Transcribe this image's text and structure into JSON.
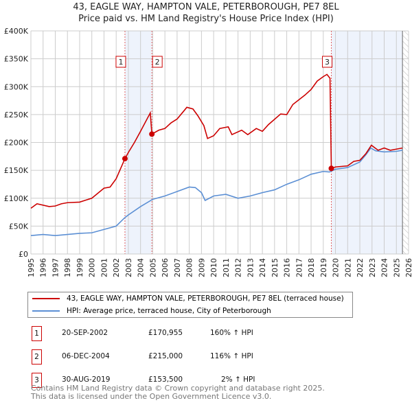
{
  "title": "43, EAGLE WAY, HAMPTON VALE, PETERBOROUGH, PE7 8EL",
  "subtitle": "Price paid vs. HM Land Registry's House Price Index (HPI)",
  "chart_data": {
    "type": "line",
    "ylim": [
      0,
      400000
    ],
    "xlim": [
      1995,
      2026
    ],
    "yticks": [
      {
        "v": 0,
        "label": "£0"
      },
      {
        "v": 50000,
        "label": "£50K"
      },
      {
        "v": 100000,
        "label": "£100K"
      },
      {
        "v": 150000,
        "label": "£150K"
      },
      {
        "v": 200000,
        "label": "£200K"
      },
      {
        "v": 250000,
        "label": "£250K"
      },
      {
        "v": 300000,
        "label": "£300K"
      },
      {
        "v": 350000,
        "label": "£350K"
      },
      {
        "v": 400000,
        "label": "£400K"
      }
    ],
    "xticks": [
      "1995",
      "1996",
      "1997",
      "1998",
      "1999",
      "2000",
      "2001",
      "2002",
      "2003",
      "2004",
      "2005",
      "2006",
      "2007",
      "2008",
      "2009",
      "2010",
      "2011",
      "2012",
      "2013",
      "2014",
      "2015",
      "2016",
      "2017",
      "2018",
      "2019",
      "2020",
      "2021",
      "2022",
      "2023",
      "2024",
      "2025",
      "2026"
    ],
    "grid": true,
    "series": [
      {
        "name": "43, EAGLE WAY, HAMPTON VALE, PETERBOROUGH, PE7 8EL (terraced house)",
        "color": "#cc0000",
        "x": [
          1995,
          1995.5,
          1996.5,
          1997,
          1997.5,
          1998,
          1999,
          2000,
          2001,
          2001.5,
          2002,
          2002.72,
          2003,
          2003.5,
          2004,
          2004.8,
          2004.93,
          2005.5,
          2006,
          2006.5,
          2007,
          2007.5,
          2007.8,
          2008.3,
          2008.7,
          2009.2,
          2009.5,
          2010,
          2010.5,
          2011.2,
          2011.5,
          2012.3,
          2012.8,
          2013.5,
          2014,
          2014.5,
          2015.5,
          2016,
          2016.5,
          2017.5,
          2018,
          2018.5,
          2019,
          2019.3,
          2019.55,
          2019.66,
          2020,
          2021,
          2021.5,
          2022,
          2022.5,
          2022.95,
          2023.5,
          2024,
          2024.5,
          2025,
          2025.5
        ],
        "y": [
          82000,
          90000,
          85000,
          86000,
          90000,
          92000,
          93000,
          100000,
          118000,
          120000,
          135000,
          170955,
          182000,
          200000,
          220000,
          253000,
          215000,
          222000,
          225000,
          235000,
          242000,
          255000,
          263000,
          260000,
          248000,
          230000,
          207000,
          212000,
          225000,
          228000,
          214000,
          222000,
          214000,
          225000,
          220000,
          232000,
          251000,
          250000,
          268000,
          285000,
          295000,
          310000,
          318000,
          322000,
          315000,
          153500,
          156000,
          158000,
          166000,
          168000,
          180000,
          195000,
          186000,
          190000,
          186000,
          188000,
          190000
        ]
      },
      {
        "name": "HPI: Average price, terraced house, City of Peterborough",
        "color": "#5b8fd4",
        "x": [
          1995,
          1996,
          1997,
          1998,
          1999,
          2000,
          2001,
          2002,
          2002.7,
          2003,
          2004,
          2005,
          2006,
          2007,
          2008,
          2008.5,
          2009,
          2009.3,
          2010,
          2011,
          2012,
          2013,
          2014,
          2015,
          2016,
          2017,
          2018,
          2019,
          2019.5,
          2020,
          2021,
          2022,
          2022.5,
          2022.9,
          2023.3,
          2024,
          2025,
          2025.5
        ],
        "y": [
          33000,
          35000,
          33000,
          35000,
          37000,
          38000,
          44000,
          50000,
          65000,
          70000,
          85000,
          98000,
          104000,
          112000,
          120000,
          119000,
          110000,
          96000,
          104000,
          107000,
          100000,
          104000,
          110000,
          115000,
          125000,
          133000,
          143000,
          148000,
          147000,
          152000,
          155000,
          165000,
          178000,
          190000,
          185000,
          183000,
          184000,
          186000
        ]
      }
    ],
    "sales": [
      {
        "id": "1",
        "x": 2002.72,
        "y": 170955
      },
      {
        "id": "2",
        "x": 2004.93,
        "y": 215000
      },
      {
        "id": "3",
        "x": 2019.66,
        "y": 153500
      }
    ],
    "shaded_periods": [
      [
        2002.72,
        2004.93
      ],
      [
        2019.66,
        2025.5
      ]
    ],
    "forecast_hatch_from": 2025.5
  },
  "legend": {
    "property": "43, EAGLE WAY, HAMPTON VALE, PETERBOROUGH, PE7 8EL (terraced house)",
    "hpi": "HPI: Average price, terraced house, City of Peterborough",
    "property_color": "#cc0000",
    "hpi_color": "#5b8fd4"
  },
  "transactions": [
    {
      "id": "1",
      "date": "20-SEP-2002",
      "price": "£170,955",
      "hpi": "160% ↑ HPI"
    },
    {
      "id": "2",
      "date": "06-DEC-2004",
      "price": "£215,000",
      "hpi": "116% ↑ HPI"
    },
    {
      "id": "3",
      "date": "30-AUG-2019",
      "price": "£153,500",
      "hpi": "2% ↑ HPI"
    }
  ],
  "footer": {
    "line1": "Contains HM Land Registry data © Crown copyright and database right 2025.",
    "line2": "This data is licensed under the Open Government Licence v3.0."
  }
}
